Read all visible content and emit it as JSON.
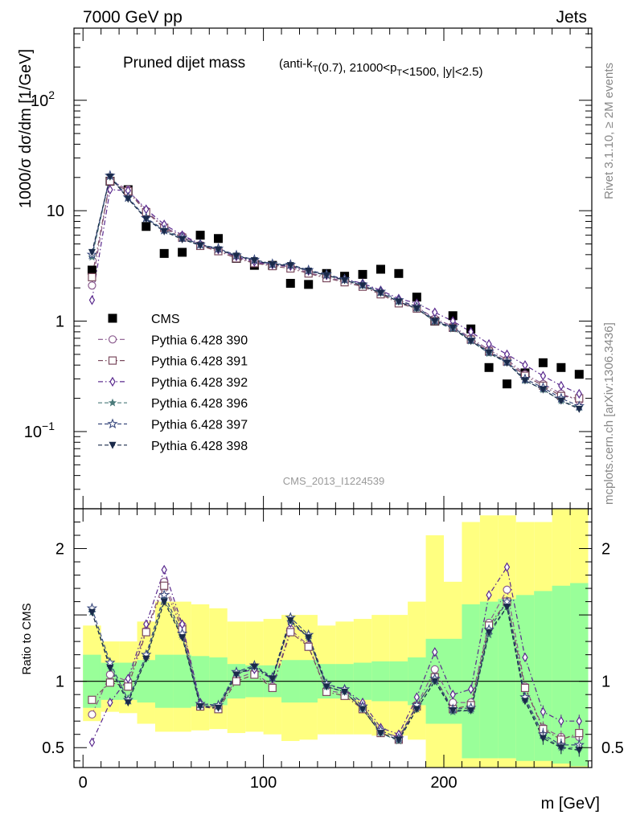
{
  "header": {
    "left": "7000 GeV pp",
    "right": "Jets",
    "side_top": "Rivet 3.1.10, ≥ 2M events",
    "side_bottom": "mcplots.cern.ch [arXiv:1306.3436]"
  },
  "chart_data": [
    {
      "type": "scatter",
      "panel": "main",
      "title": "Pruned dijet mass",
      "subtitle": "(anti-k_T(0.7), 21000<p_T<1500, |y|<2.5)",
      "watermark": "CMS_2013_I1224539",
      "ylabel": "1000/σ dσ/dm [1/GeV]",
      "yscale": "log",
      "ylim": [
        0.02,
        450
      ],
      "xlim": [
        -5,
        282
      ],
      "yticks": [
        {
          "v": 0.1,
          "label": "10",
          "exp": "−1"
        },
        {
          "v": 1,
          "label": "1",
          "exp": ""
        },
        {
          "v": 10,
          "label": "10",
          "exp": ""
        },
        {
          "v": 100,
          "label": "10",
          "exp": "2"
        }
      ],
      "legend_position": "left-middle",
      "x": [
        5,
        15,
        25,
        35,
        45,
        55,
        65,
        75,
        85,
        95,
        105,
        115,
        125,
        135,
        145,
        155,
        165,
        175,
        185,
        195,
        205,
        215,
        225,
        235,
        245,
        255,
        265,
        275
      ],
      "series": [
        {
          "name": "CMS",
          "marker": "square-filled",
          "color": "#000000",
          "line": "none",
          "values": [
            2.9,
            18.5,
            15.5,
            7.2,
            4.1,
            4.2,
            6.0,
            5.6,
            3.7,
            3.2,
            3.2,
            2.2,
            2.15,
            2.7,
            2.55,
            2.65,
            2.95,
            2.7,
            1.65,
            1.0,
            1.12,
            0.85,
            0.38,
            0.27,
            0.34,
            0.42,
            0.38,
            0.33
          ]
        },
        {
          "name": "Pythia 6.428 390",
          "marker": "circle-open",
          "color": "#8a5a8e",
          "line": "dashdot",
          "values": [
            2.1,
            19.0,
            15.5,
            10.0,
            7.1,
            5.9,
            4.9,
            4.4,
            3.8,
            3.4,
            3.2,
            3.1,
            2.75,
            2.5,
            2.3,
            2.1,
            1.8,
            1.5,
            1.35,
            1.05,
            0.9,
            0.7,
            0.55,
            0.45,
            0.33,
            0.27,
            0.22,
            0.19
          ]
        },
        {
          "name": "Pythia 6.428 391",
          "marker": "square-open",
          "color": "#7a4a5e",
          "line": "dashdot",
          "values": [
            2.5,
            18.5,
            15.0,
            9.7,
            7.0,
            5.7,
            4.8,
            4.3,
            3.7,
            3.35,
            3.15,
            3.0,
            2.7,
            2.45,
            2.25,
            2.05,
            1.75,
            1.45,
            1.3,
            1.0,
            0.87,
            0.68,
            0.53,
            0.43,
            0.32,
            0.26,
            0.21,
            0.2
          ]
        },
        {
          "name": "Pythia 6.428 392",
          "marker": "diamond-open",
          "color": "#5a2a8e",
          "line": "dashdot",
          "values": [
            1.55,
            15.5,
            15.2,
            10.3,
            7.5,
            6.0,
            5.0,
            4.45,
            3.85,
            3.45,
            3.25,
            3.15,
            2.85,
            2.6,
            2.4,
            2.2,
            1.9,
            1.6,
            1.45,
            1.2,
            1.0,
            0.8,
            0.62,
            0.5,
            0.4,
            0.32,
            0.26,
            0.22
          ]
        },
        {
          "name": "Pythia 6.428 396",
          "marker": "star-filled",
          "color": "#4a7a7a",
          "line": "dashed",
          "values": [
            3.8,
            20.5,
            13.0,
            8.5,
            6.6,
            5.6,
            4.9,
            4.5,
            3.9,
            3.55,
            3.25,
            3.2,
            2.85,
            2.6,
            2.35,
            2.1,
            1.8,
            1.5,
            1.3,
            0.99,
            0.85,
            0.66,
            0.51,
            0.42,
            0.29,
            0.24,
            0.19,
            0.165
          ]
        },
        {
          "name": "Pythia 6.428 397",
          "marker": "star-open",
          "color": "#3a4a7e",
          "line": "dashed",
          "values": [
            4.0,
            20.8,
            13.2,
            8.6,
            6.7,
            5.7,
            4.95,
            4.55,
            3.95,
            3.6,
            3.3,
            3.25,
            2.9,
            2.65,
            2.4,
            2.15,
            1.85,
            1.55,
            1.35,
            1.02,
            0.88,
            0.68,
            0.53,
            0.43,
            0.3,
            0.25,
            0.2,
            0.17
          ]
        },
        {
          "name": "Pythia 6.428 398",
          "marker": "triangle-down-filled",
          "color": "#1a2a4a",
          "line": "dashed",
          "values": [
            4.2,
            20.3,
            12.8,
            8.4,
            6.5,
            5.5,
            4.85,
            4.45,
            3.9,
            3.55,
            3.25,
            3.2,
            2.85,
            2.6,
            2.35,
            2.1,
            1.8,
            1.5,
            1.3,
            1.0,
            0.87,
            0.66,
            0.52,
            0.42,
            0.29,
            0.24,
            0.19,
            0.16
          ]
        }
      ]
    },
    {
      "type": "line",
      "panel": "ratio",
      "xlabel": "m [GeV]",
      "ylabel": "Ratio to CMS",
      "ylim": [
        0.35,
        2.3
      ],
      "xlim": [
        -5,
        282
      ],
      "yticks": [
        0.5,
        1,
        2
      ],
      "xticks": [
        0,
        100,
        200
      ],
      "reference_line": 1,
      "bands": {
        "edges": [
          0,
          10,
          20,
          30,
          40,
          50,
          60,
          70,
          80,
          90,
          100,
          110,
          120,
          130,
          140,
          150,
          160,
          170,
          180,
          190,
          200,
          210,
          220,
          230,
          240,
          250,
          260,
          270,
          280
        ],
        "inner": {
          "color": "#99ff99",
          "low": [
            0.8,
            0.86,
            0.86,
            0.84,
            0.8,
            0.8,
            0.81,
            0.82,
            0.87,
            0.88,
            0.88,
            0.84,
            0.84,
            0.87,
            0.87,
            0.86,
            0.85,
            0.85,
            0.82,
            0.68,
            0.68,
            0.42,
            0.42,
            0.42,
            0.4,
            0.4,
            0.38,
            0.36
          ],
          "high": [
            1.2,
            1.14,
            1.14,
            1.16,
            1.2,
            1.2,
            1.19,
            1.18,
            1.13,
            1.12,
            1.12,
            1.16,
            1.16,
            1.13,
            1.13,
            1.14,
            1.15,
            1.15,
            1.18,
            1.32,
            1.32,
            1.58,
            1.6,
            1.62,
            1.65,
            1.68,
            1.72,
            1.74
          ]
        },
        "outer": {
          "color": "#ffff80",
          "low": [
            0.7,
            0.77,
            0.76,
            0.68,
            0.62,
            0.62,
            0.63,
            0.64,
            0.61,
            0.62,
            0.6,
            0.55,
            0.56,
            0.6,
            0.6,
            0.6,
            0.59,
            0.59,
            0.56,
            0.35,
            0.35,
            0.35,
            0.35,
            0.35,
            0.35,
            0.35,
            0.35,
            0.35
          ],
          "high": [
            1.42,
            1.3,
            1.3,
            1.45,
            1.6,
            1.6,
            1.58,
            1.55,
            1.45,
            1.45,
            1.47,
            1.5,
            1.5,
            1.42,
            1.45,
            1.47,
            1.5,
            1.5,
            1.6,
            2.1,
            1.75,
            2.2,
            2.25,
            2.25,
            2.2,
            2.2,
            2.3,
            2.3
          ]
        }
      },
      "x": [
        5,
        15,
        25,
        35,
        45,
        55,
        65,
        75,
        85,
        95,
        105,
        115,
        125,
        135,
        145,
        155,
        165,
        175,
        185,
        195,
        205,
        215,
        225,
        235,
        245,
        255,
        265,
        275
      ],
      "series": [
        {
          "name": "Pythia 6.428 390",
          "marker": "circle-open",
          "color": "#8a5a8e",
          "line": "dashdot",
          "values": [
            0.75,
            1.05,
            1.0,
            1.38,
            1.75,
            1.42,
            0.82,
            0.8,
            1.02,
            1.07,
            0.96,
            1.39,
            1.27,
            0.93,
            0.91,
            0.81,
            0.62,
            0.58,
            0.82,
            1.09,
            0.84,
            0.84,
            1.44,
            1.69,
            0.96,
            0.65,
            0.58,
            0.58
          ]
        },
        {
          "name": "Pythia 6.428 391",
          "marker": "square-open",
          "color": "#7a4a5e",
          "line": "dashdot",
          "values": [
            0.86,
            0.99,
            0.96,
            1.37,
            1.72,
            1.39,
            0.81,
            0.79,
            1.0,
            1.05,
            0.95,
            1.37,
            1.26,
            0.92,
            0.89,
            0.79,
            0.61,
            0.56,
            0.81,
            1.03,
            0.79,
            0.82,
            1.42,
            1.6,
            0.95,
            0.64,
            0.56,
            0.61
          ]
        },
        {
          "name": "Pythia 6.428 392",
          "marker": "diamond-open",
          "color": "#5a2a8e",
          "line": "dashdot",
          "values": [
            0.54,
            0.84,
            1.02,
            1.43,
            1.84,
            1.43,
            0.84,
            0.81,
            1.06,
            1.09,
            1.02,
            1.44,
            1.33,
            0.97,
            0.94,
            0.84,
            0.65,
            0.6,
            0.88,
            1.22,
            0.9,
            0.94,
            1.65,
            1.86,
            1.18,
            0.77,
            0.7,
            0.7
          ]
        },
        {
          "name": "Pythia 6.428 396",
          "marker": "star-filled",
          "color": "#4a7a7a",
          "line": "dashed",
          "values": [
            1.52,
            1.12,
            0.85,
            1.18,
            1.62,
            1.34,
            0.82,
            0.81,
            1.06,
            1.11,
            1.02,
            1.45,
            1.33,
            0.96,
            0.92,
            0.79,
            0.61,
            0.55,
            0.79,
            1.0,
            0.77,
            0.78,
            1.35,
            1.56,
            0.86,
            0.59,
            0.5,
            0.5
          ]
        },
        {
          "name": "Pythia 6.428 397",
          "marker": "star-open",
          "color": "#3a4a7e",
          "line": "dashed",
          "values": [
            1.55,
            1.14,
            0.86,
            1.2,
            1.65,
            1.36,
            0.83,
            0.82,
            1.07,
            1.12,
            1.03,
            1.48,
            1.35,
            0.98,
            0.94,
            0.81,
            0.63,
            0.57,
            0.82,
            1.02,
            0.79,
            0.8,
            1.39,
            1.6,
            0.88,
            0.6,
            0.52,
            0.52
          ]
        },
        {
          "name": "Pythia 6.428 398",
          "marker": "triangle-down-filled",
          "color": "#1a2a4a",
          "line": "dashed",
          "values": [
            1.52,
            1.1,
            0.84,
            1.17,
            1.6,
            1.33,
            0.81,
            0.8,
            1.05,
            1.11,
            1.02,
            1.46,
            1.33,
            0.96,
            0.92,
            0.79,
            0.61,
            0.56,
            0.79,
            1.0,
            0.78,
            0.78,
            1.37,
            1.56,
            0.85,
            0.57,
            0.5,
            0.48
          ]
        }
      ]
    }
  ]
}
